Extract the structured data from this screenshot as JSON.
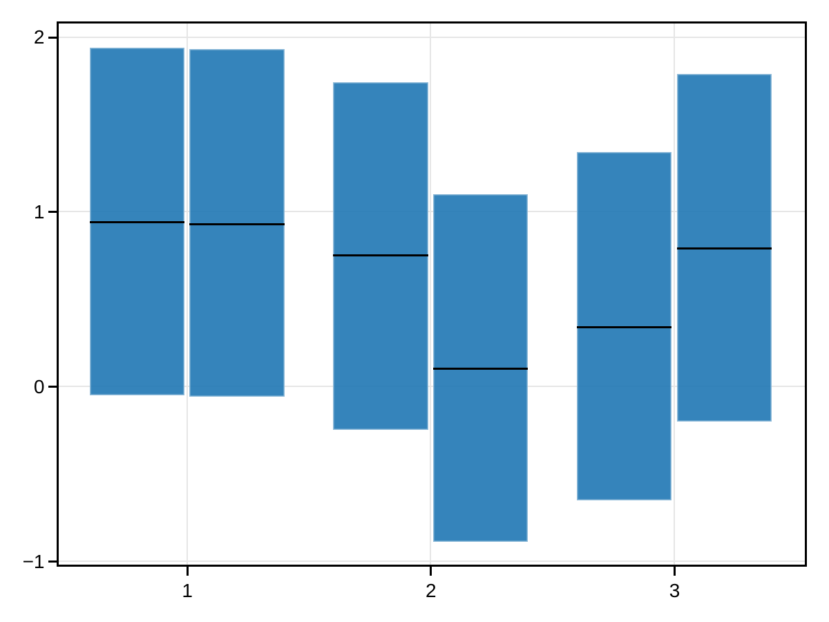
{
  "chart_data": {
    "type": "bar",
    "subtype": "crossbar-range-with-midline",
    "title": "",
    "xlabel": "",
    "ylabel": "",
    "categories": [
      1,
      2,
      3
    ],
    "series": [
      {
        "name": "dodge-left",
        "dodge": -0.205,
        "bars": [
          {
            "x": 1,
            "ymin": -0.05,
            "mid": 0.94,
            "ymax": 1.94
          },
          {
            "x": 2,
            "ymin": -0.25,
            "mid": 0.75,
            "ymax": 1.74
          },
          {
            "x": 3,
            "ymin": -0.65,
            "mid": 0.34,
            "ymax": 1.34
          }
        ]
      },
      {
        "name": "dodge-right",
        "dodge": 0.205,
        "bars": [
          {
            "x": 1,
            "ymin": -0.06,
            "mid": 0.93,
            "ymax": 1.93
          },
          {
            "x": 2,
            "ymin": -0.89,
            "mid": 0.1,
            "ymax": 1.1
          },
          {
            "x": 3,
            "ymin": -0.2,
            "mid": 0.79,
            "ymax": 1.79
          }
        ]
      }
    ],
    "bar_width": 0.39,
    "xlim": [
      0.465,
      3.543
    ],
    "ylim": [
      -1.027,
      2.089
    ],
    "x_tick_values": [
      1,
      2,
      3
    ],
    "x_ticks": [
      "1",
      "2",
      "3"
    ],
    "y_tick_values": [
      -1,
      0,
      1,
      2
    ],
    "y_ticks": [
      "−1",
      "0",
      "1",
      "2"
    ],
    "grid": true,
    "legend": "none",
    "colors": {
      "bar_fill": "#1f77b4",
      "bar_fill_alpha": 0.9,
      "bar_edge": "rgba(255,255,255,0.45)",
      "median_line": "#000000",
      "grid_line": "#e6e6e6",
      "spine": "#000000",
      "tick_label": "#000000",
      "background": "#ffffff"
    }
  }
}
